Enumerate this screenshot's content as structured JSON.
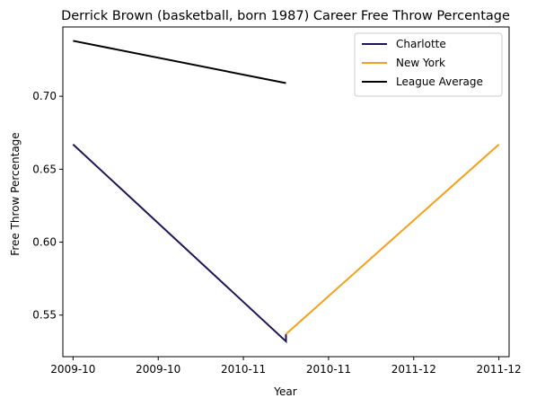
{
  "chart_data": {
    "type": "line",
    "title": "Derrick Brown (basketball, born 1987) Career Free Throw Percentage",
    "xlabel": "Year",
    "ylabel": "Free Throw Percentage",
    "x_tick_labels": [
      "2009-10",
      "2009-10",
      "2010-11",
      "2010-11",
      "2011-12",
      "2011-12"
    ],
    "x_tick_positions": [
      2009.0,
      2009.5,
      2010.0,
      2010.5,
      2011.0,
      2011.5
    ],
    "xlim": [
      2008.94,
      2011.56
    ],
    "y_ticks": [
      0.55,
      0.6,
      0.65,
      0.7
    ],
    "y_tick_labels": [
      "0.55",
      "0.60",
      "0.65",
      "0.70"
    ],
    "ylim": [
      0.5215,
      0.7475
    ],
    "legend_position": "top-right",
    "series": [
      {
        "name": "Charlotte",
        "color": "#1f1456",
        "points": [
          [
            2009.0,
            0.667
          ],
          [
            2010.25,
            0.532
          ],
          [
            2010.25,
            0.537
          ]
        ]
      },
      {
        "name": "New York",
        "color": "#f5a01a",
        "points": [
          [
            2010.25,
            0.537
          ],
          [
            2011.5,
            0.667
          ]
        ]
      },
      {
        "name": "League Average",
        "color": "#000000",
        "points": [
          [
            2009.0,
            0.738
          ],
          [
            2010.25,
            0.709
          ]
        ]
      }
    ]
  }
}
